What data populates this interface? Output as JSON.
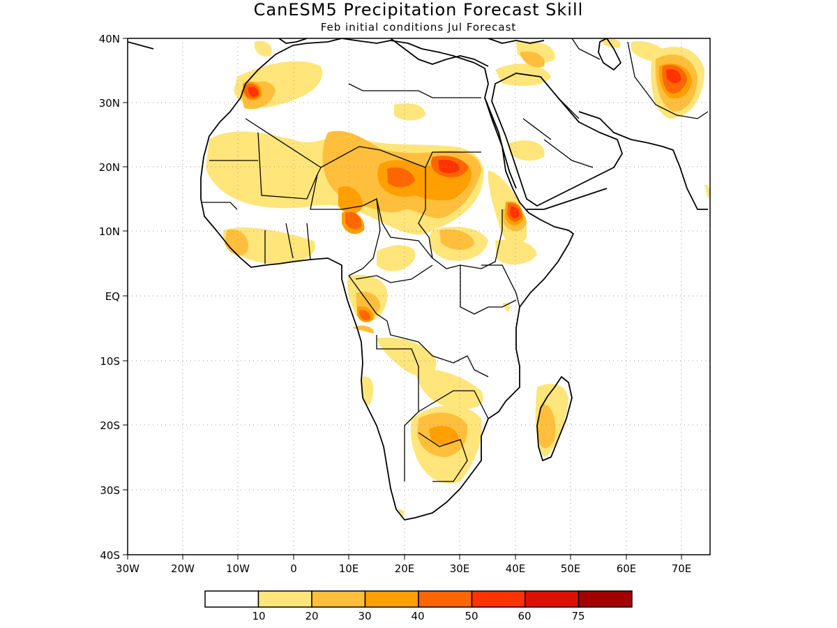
{
  "title": "CanESM5 Precipitation Forecast Skill",
  "subtitle": "Feb initial conditions  Jul Forecast",
  "lat_labels": [
    "40N",
    "30N",
    "20N",
    "10N",
    "EQ",
    "10S",
    "20S",
    "30S",
    "40S"
  ],
  "lon_labels": [
    "30W",
    "20W",
    "10W",
    "0",
    "10E",
    "20E",
    "30E",
    "40E",
    "50E",
    "60E",
    "70E"
  ],
  "colorbar": {
    "colors": [
      "#ffffff",
      "#ffe57a",
      "#ffbf3c",
      "#ff9f00",
      "#ff6600",
      "#ff3300",
      "#dd1100",
      "#a50000"
    ],
    "labels": [
      "10",
      "20",
      "30",
      "40",
      "50",
      "60",
      "75"
    ]
  },
  "map_extent": {
    "lon_min": -30,
    "lon_max": 75,
    "lat_min": -40,
    "lat_max": 40
  },
  "skill_regions": [
    {
      "name": "morocco",
      "level": 2,
      "lon": -5,
      "lat": 31
    },
    {
      "name": "sahel-west",
      "level": 1,
      "lon": 0,
      "lat": 20
    },
    {
      "name": "chad-sudan",
      "level": 3,
      "lon": 20,
      "lat": 18
    },
    {
      "name": "sudan-east",
      "level": 4,
      "lon": 28,
      "lat": 20
    },
    {
      "name": "eritrea",
      "level": 5,
      "lon": 40,
      "lat": 12
    },
    {
      "name": "afghanistan",
      "level": 4,
      "lon": 68,
      "lat": 33
    },
    {
      "name": "southern-africa",
      "level": 3,
      "lon": 28,
      "lat": -22
    },
    {
      "name": "madagascar",
      "level": 2,
      "lon": 46,
      "lat": -20
    },
    {
      "name": "gabon",
      "level": 3,
      "lon": 12,
      "lat": -2
    }
  ]
}
